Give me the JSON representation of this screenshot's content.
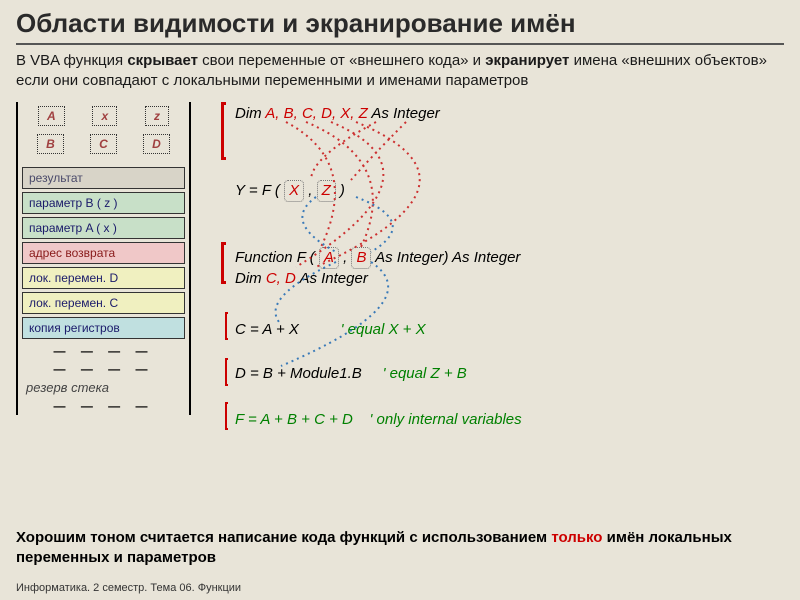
{
  "title": "Области видимости и экранирование имён",
  "intro_parts": {
    "p1": "В VBA функция ",
    "p2": "скрывает",
    "p3": " свои переменные от «внешнего кода» и ",
    "p4": "экранирует",
    "p5": " имена «внешних объектов» если они совпадают с локальными переменными и именами параметров"
  },
  "stack": {
    "vars_top": [
      "A",
      "x",
      "z"
    ],
    "vars_row2": [
      "B",
      "C",
      "D"
    ],
    "cells": [
      {
        "label": "результат",
        "cls": "cell-result"
      },
      {
        "label": "параметр B  ( z )",
        "cls": "cell-param"
      },
      {
        "label": "параметр A  ( x )",
        "cls": "cell-param"
      },
      {
        "label": "адрес возврата",
        "cls": "cell-ret"
      },
      {
        "label": "лок. перемен. D",
        "cls": "cell-local"
      },
      {
        "label": "лок. перемен. C",
        "cls": "cell-local"
      },
      {
        "label": "копия регистров",
        "cls": "cell-reg"
      }
    ],
    "reserve": "резерв стека"
  },
  "code": {
    "l1_pre": "Dim ",
    "l1_vars": "A, B, C, D, X,  Z",
    "l1_post": "  As Integer",
    "l2_pre": "Y =   F ( ",
    "l2_x": "X",
    "l2_mid": " ,  ",
    "l2_z": "Z",
    "l2_post": "  )",
    "l3_pre": "Function  F ( ",
    "l3_a": "A",
    "l3_mid1": " ,  ",
    "l3_b": "B",
    "l3_mid2": "   As Integer) As Integer",
    "l4_pre": "Dim ",
    "l4_vars": "C, D",
    "l4_post": "  As  Integer",
    "l5_pre": "C = A + X",
    "l5_comment": "'  equal   X  + X",
    "l6_pre": "D = B + Module1.B",
    "l6_comment": "'  equal  Z  + B",
    "l7_pre": "F = A + B + C + D",
    "l7_comment": "'  only internal variables"
  },
  "footer_note": {
    "p1": "Хорошим тоном считается написание кода функций с использованием ",
    "p2": "только",
    "p3": " имён локальных переменных и параметров"
  },
  "slide_footer": "Информатика. 2 семестр. Тема 06. Функции",
  "colors": {
    "bg": "#e8e4d8",
    "red": "#cc0000",
    "green": "#008000",
    "blue_dot": "#3a7ab8",
    "red_dot": "#cc3030"
  }
}
